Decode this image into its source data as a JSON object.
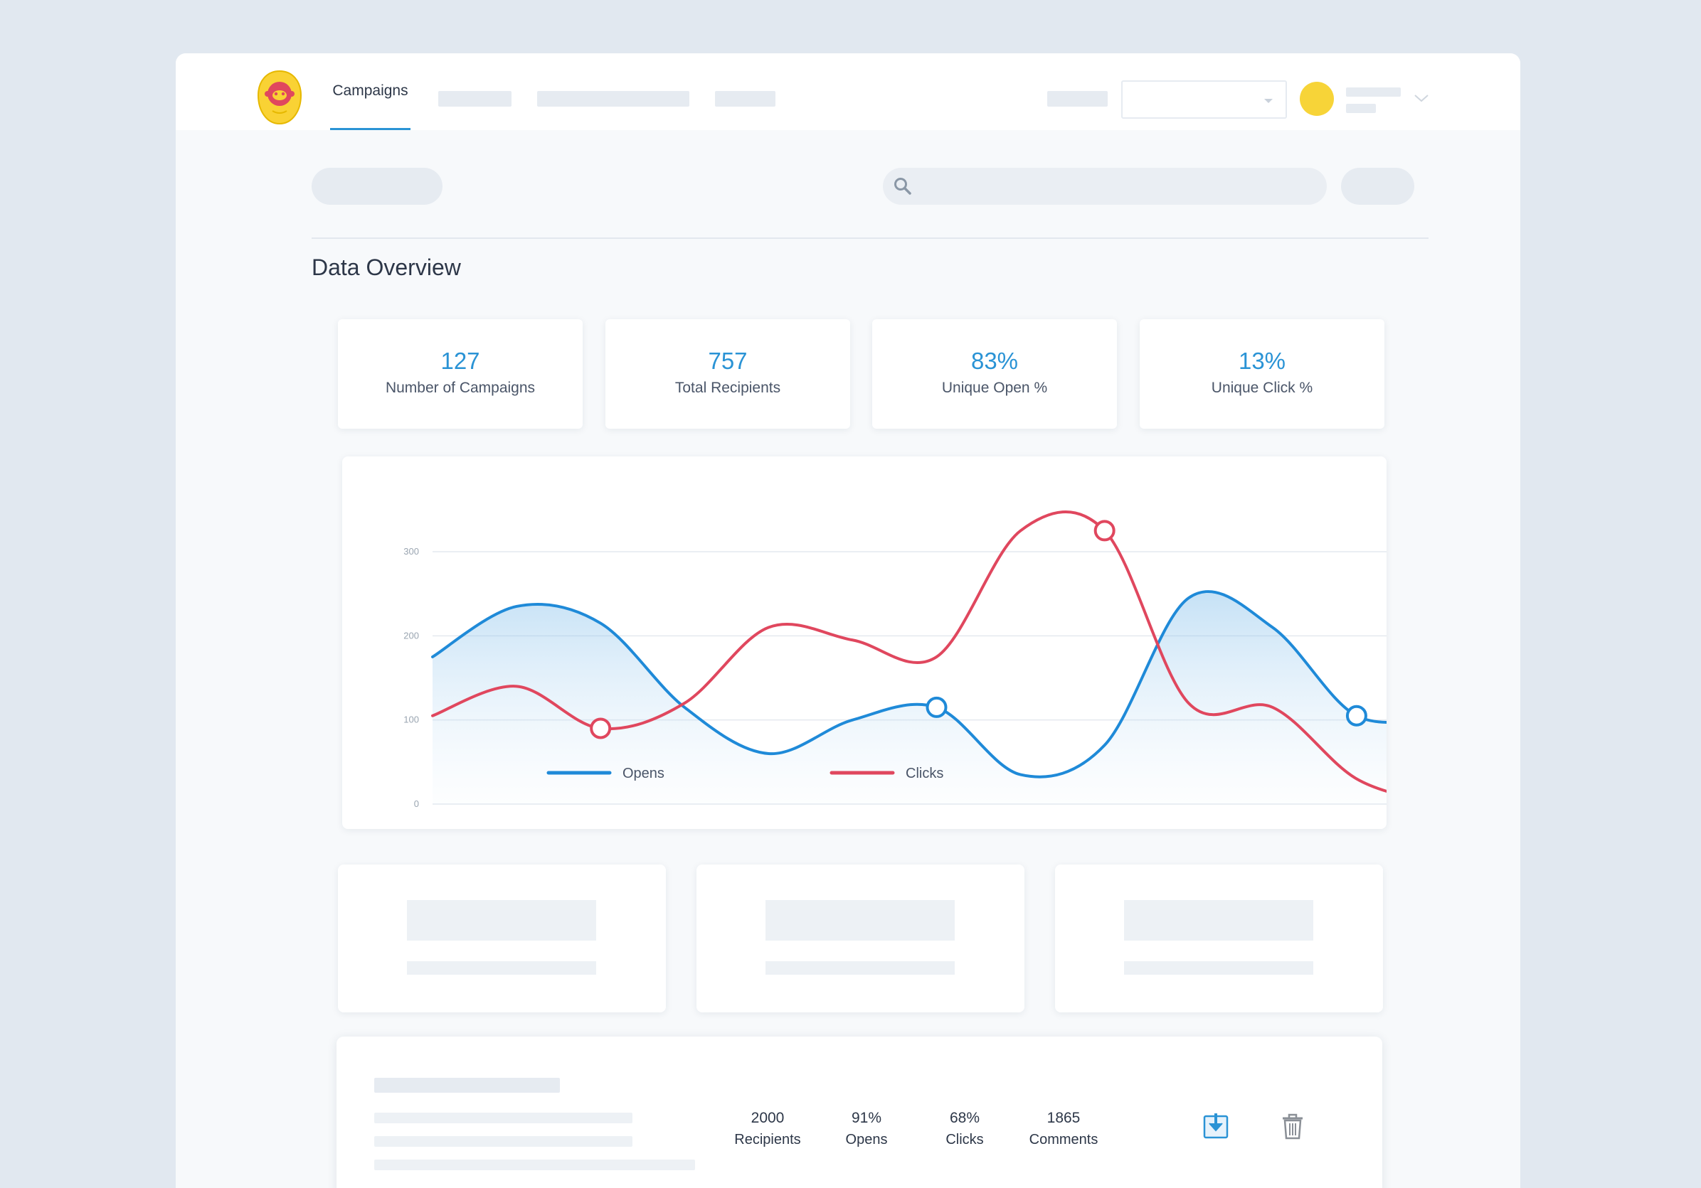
{
  "nav": {
    "active_tab": "Campaigns"
  },
  "page": {
    "title": "Data Overview"
  },
  "stats": [
    {
      "value": "127",
      "label": "Number of Campaigns"
    },
    {
      "value": "757",
      "label": "Total Recipients"
    },
    {
      "value": "83%",
      "label": "Unique Open %"
    },
    {
      "value": "13%",
      "label": "Unique Click %"
    }
  ],
  "chart_data": {
    "type": "line",
    "title": "",
    "xlabel": "",
    "ylabel": "",
    "ylim": [
      0,
      300
    ],
    "y_ticks": [
      "300",
      "200",
      "100",
      "0"
    ],
    "x": [
      0,
      1,
      2,
      3,
      4,
      5,
      6,
      7,
      8,
      9,
      10,
      11,
      12
    ],
    "series": [
      {
        "name": "Opens",
        "color": "#1f8ad8",
        "area": true,
        "values": [
          175,
          235,
          215,
          115,
          60,
          100,
          115,
          35,
          70,
          245,
          210,
          105,
          105
        ]
      },
      {
        "name": "Clicks",
        "color": "#e0475e",
        "area": false,
        "values": [
          105,
          140,
          90,
          120,
          210,
          195,
          175,
          325,
          325,
          120,
          115,
          30,
          0
        ]
      }
    ],
    "markers": [
      {
        "series": "Clicks",
        "index": 2
      },
      {
        "series": "Clicks",
        "index": 8
      },
      {
        "series": "Opens",
        "index": 6
      },
      {
        "series": "Opens",
        "index": 11
      }
    ],
    "grid": true,
    "legend_position": "bottom"
  },
  "campaign": {
    "metrics": [
      {
        "value": "2000",
        "label": "Recipients"
      },
      {
        "value": "91%",
        "label": "Opens"
      },
      {
        "value": "68%",
        "label": "Clicks"
      },
      {
        "value": "1865",
        "label": "Comments"
      }
    ],
    "icons": [
      "download-icon",
      "trash-icon"
    ]
  }
}
